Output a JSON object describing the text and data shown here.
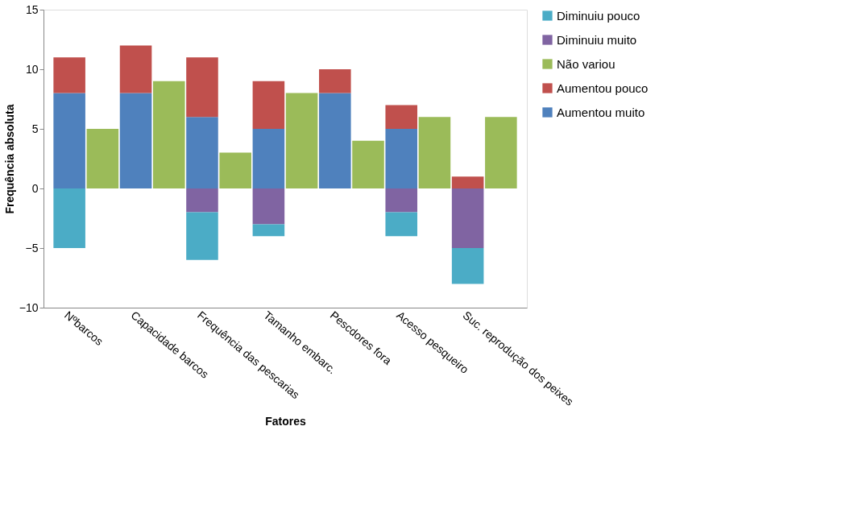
{
  "chart_data": {
    "type": "bar",
    "stacked": true,
    "categories": [
      "Nºbarcos",
      null,
      "Capacidade barcos",
      null,
      "Frequência das pescarias",
      null,
      "Tamanho embarc.",
      null,
      "Pescdores fora",
      null,
      "Acesso pesqueiro",
      null,
      "Suc. reprodução dos peixes",
      null
    ],
    "series": [
      {
        "name": "Aumentou muito",
        "color": "#4f81bd",
        "values": [
          8,
          null,
          8,
          null,
          6,
          null,
          5,
          null,
          8,
          null,
          5,
          null,
          0,
          null
        ]
      },
      {
        "name": "Aumentou pouco",
        "color": "#c0504d",
        "values": [
          3,
          null,
          4,
          null,
          5,
          null,
          4,
          null,
          2,
          null,
          2,
          null,
          1,
          null
        ]
      },
      {
        "name": "Não variou",
        "color": "#9bbb59",
        "values": [
          null,
          5,
          null,
          9,
          null,
          3,
          null,
          8,
          null,
          4,
          null,
          6,
          null,
          6
        ]
      },
      {
        "name": "Diminuiu muito",
        "color": "#8064a2",
        "values": [
          0,
          null,
          0,
          null,
          -2,
          null,
          -3,
          null,
          0,
          null,
          -2,
          null,
          -5,
          null
        ]
      },
      {
        "name": "Diminuiu pouco",
        "color": "#4bacc6",
        "values": [
          -5,
          null,
          0,
          null,
          -4,
          null,
          -1,
          null,
          0,
          null,
          -2,
          null,
          -3,
          null
        ]
      }
    ],
    "xlabel": "Fatores",
    "ylabel": "Frequência absoluta",
    "ylim": [
      -10,
      15
    ],
    "yticks": [
      -10,
      -5,
      0,
      5,
      10,
      15
    ],
    "grid": false,
    "legend": "right"
  }
}
